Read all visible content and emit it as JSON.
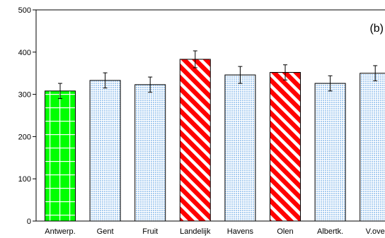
{
  "chart_data": {
    "type": "bar",
    "title": "",
    "xlabel": "",
    "ylabel": "",
    "ylim": [
      0,
      500
    ],
    "yticks": [
      0,
      100,
      200,
      300,
      400,
      500
    ],
    "grid": false,
    "panel_label": "(b)",
    "categories": [
      "Antwerp.",
      "Gent",
      "Fruit",
      "Landelijk",
      "Havens",
      "Olen",
      "Albertk.",
      "V.ove"
    ],
    "values": [
      308,
      333,
      323,
      383,
      346,
      352,
      326,
      350
    ],
    "errors": [
      18,
      18,
      18,
      20,
      20,
      18,
      18,
      18
    ],
    "fill_styles": [
      "green-grid",
      "light-blue-dots",
      "light-blue-dots",
      "red-diagonal-stripes",
      "light-blue-dots",
      "red-diagonal-stripes",
      "light-blue-dots",
      "light-blue-dots"
    ],
    "colors": {
      "green": "#00ff00",
      "light_blue": "#b8d8f4",
      "red": "#ff0000",
      "outline": "#000000"
    }
  }
}
